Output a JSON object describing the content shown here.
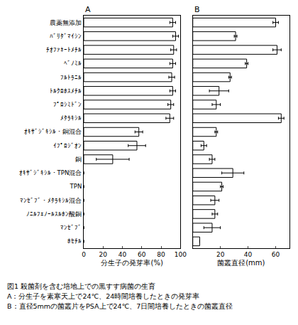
{
  "chart_data": [
    {
      "type": "bar",
      "orientation": "horizontal",
      "title": "A",
      "categories": [
        "農薬無添加",
        "ﾊﾞﾘﾀﾞﾏｲｼﾝ",
        "ﾁｵﾌｧﾈｰﾄﾒﾁﾙ",
        "ﾍﾞﾉﾐﾙ",
        "ﾌﾙﾄﾗﾆﾙ",
        "ﾄﾙｸﾛﾎｽﾒﾁﾙ",
        "ﾌﾟﾛｼﾐﾄﾞﾝ",
        "ﾒﾀﾗｷｼﾙ",
        "ｵｷｻﾞｼﾞｷｼﾙ・銅混合",
        "ｲﾌﾟﾛｼﾞｵﾝ",
        "銅",
        "ｵｷｻﾞｼﾞｷｼﾙ・TPN混合",
        "TPN",
        "ﾏﾝｾﾞﾌﾞ・ﾒﾀﾗｷｼﾙ混合",
        "ﾉﾆﾙﾌｪﾉｰﾙｽﾙﾎﾝ酸銅",
        "ﾏﾝｾﾞﾌﾞ",
        "ﾎｾﾁﾙ"
      ],
      "values": [
        92,
        95,
        93,
        92,
        91,
        92,
        90,
        89,
        57,
        55,
        30,
        0,
        0,
        0,
        0,
        0,
        0
      ],
      "errors": [
        3,
        3,
        3,
        3,
        3,
        3,
        3,
        4,
        4,
        9,
        17,
        null,
        null,
        null,
        null,
        null,
        null
      ],
      "color": "#ffffff",
      "xlabel": "分生子の発芽率(%)",
      "xlim": [
        0,
        100
      ],
      "xticks": [
        0,
        20,
        40,
        60,
        80,
        100
      ]
    },
    {
      "type": "bar",
      "orientation": "horizontal",
      "title": "B",
      "tick_labels": "x",
      "categories": [
        "農薬無添加",
        "ﾊﾞﾘﾀﾞﾏｲｼﾝ",
        "ﾁｵﾌｧﾈｰﾄﾒﾁﾙ",
        "ﾍﾞﾉﾐﾙ",
        "ﾌﾙﾄﾗﾆﾙ",
        "ﾄﾙｸﾛﾎｽﾒﾁﾙ",
        "ﾌﾟﾛｼﾐﾄﾞﾝ",
        "ﾒﾀﾗｷｼﾙ",
        "ｵｷｻﾞｼﾞｷｼﾙ・銅混合",
        "ｲﾌﾟﾛｼﾞｵﾝ",
        "銅",
        "ｵｷｻﾞｼﾞｷｼﾙ・TPN混合",
        "TPN",
        "ﾏﾝｾﾞﾌﾞ・ﾒﾀﾗｷｼﾙ混合",
        "ﾉﾆﾙﾌｪﾉｰﾙｽﾙﾎﾝ酸銅",
        "ﾏﾝｾﾞﾌﾞ",
        "ﾎｾﾁﾙ"
      ],
      "values": [
        60,
        31,
        61,
        39,
        27,
        19,
        17,
        64,
        17,
        8,
        14,
        29,
        21,
        16,
        16,
        14,
        5
      ],
      "errors": [
        2,
        1,
        3,
        1,
        1,
        7,
        3,
        2,
        1,
        2,
        2,
        8,
        1,
        3,
        2,
        6,
        null
      ],
      "color": "#ffffff",
      "xlabel": "菌叢直径(mm)",
      "xlim": [
        0,
        70
      ],
      "xticks": [
        20,
        40,
        60
      ]
    }
  ],
  "caption": [
    "図1 殺菌剤を含む培地上での黒すす病菌の生育",
    "A：分生子を素寒天上で24℃、24時間培養したときの発芽率",
    "B：直径5mmの菌叢片をPSA上で24℃、7日間培養したときの菌叢直径"
  ]
}
